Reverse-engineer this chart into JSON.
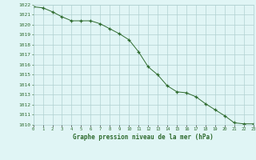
{
  "x": [
    0,
    1,
    2,
    3,
    4,
    5,
    6,
    7,
    8,
    9,
    10,
    11,
    12,
    13,
    14,
    15,
    16,
    17,
    18,
    19,
    20,
    21,
    22,
    23
  ],
  "y": [
    1021.8,
    1021.7,
    1021.3,
    1020.8,
    1020.4,
    1020.4,
    1020.4,
    1020.1,
    1019.6,
    1019.1,
    1018.5,
    1017.3,
    1015.8,
    1015.0,
    1013.9,
    1013.3,
    1013.2,
    1012.8,
    1012.1,
    1011.5,
    1010.9,
    1010.2,
    1010.1,
    1010.1
  ],
  "title": "Graphe pression niveau de la mer (hPa)",
  "ylim_min": 1010,
  "ylim_max": 1022,
  "yticks": [
    1010,
    1011,
    1012,
    1013,
    1014,
    1015,
    1016,
    1017,
    1018,
    1019,
    1020,
    1021,
    1022
  ],
  "xticks": [
    0,
    1,
    2,
    3,
    4,
    5,
    6,
    7,
    8,
    9,
    10,
    11,
    12,
    13,
    14,
    15,
    16,
    17,
    18,
    19,
    20,
    21,
    22,
    23
  ],
  "line_color": "#2d6a2d",
  "marker_color": "#2d6a2d",
  "bg_color": "#e0f5f5",
  "grid_color": "#b0d0d0",
  "title_color": "#2d6a2d",
  "tick_color": "#2d6a2d"
}
